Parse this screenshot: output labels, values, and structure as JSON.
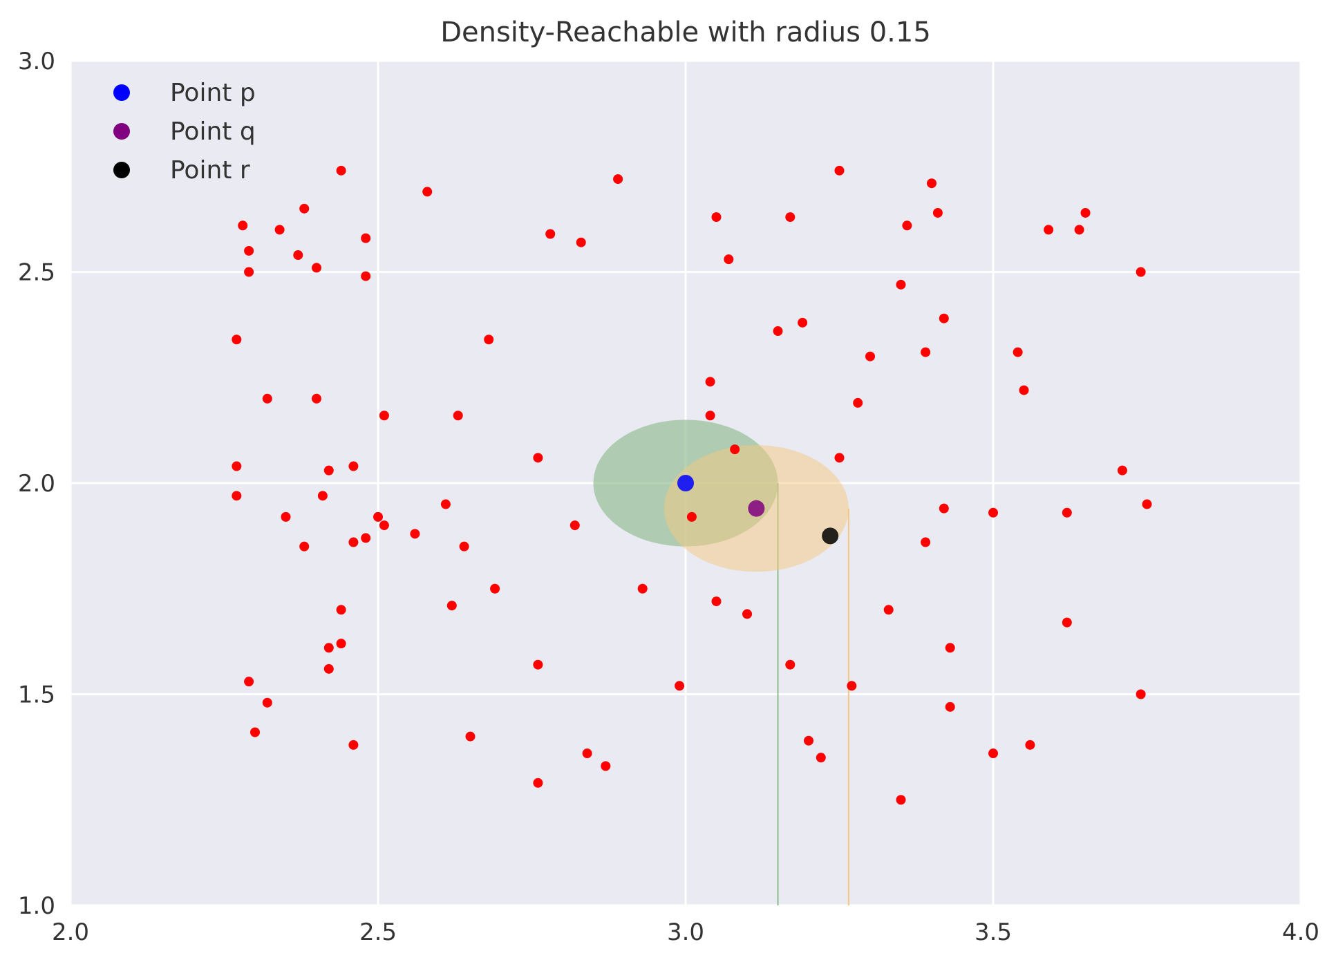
{
  "chart_data": {
    "type": "scatter",
    "title": "Density-Reachable with radius 0.15",
    "xlabel": "",
    "ylabel": "",
    "xlim": [
      2.0,
      4.0
    ],
    "ylim": [
      1.0,
      3.0
    ],
    "x_ticks": [
      2.0,
      2.5,
      3.0,
      3.5,
      4.0
    ],
    "y_ticks": [
      1.0,
      1.5,
      2.0,
      2.5,
      3.0
    ],
    "x_tick_labels": [
      "2.0",
      "2.5",
      "3.0",
      "3.5",
      "4.0"
    ],
    "y_tick_labels": [
      "1.0",
      "1.5",
      "2.0",
      "2.5",
      "3.0"
    ],
    "grid": true,
    "legend_position": "top-left",
    "radius": 0.15,
    "colors": {
      "background": "#eaeaf2",
      "grid": "#ffffff",
      "points": "#ff0000",
      "p": "#0000ff",
      "q": "#800080",
      "r": "#000000",
      "circle_p": "#8fbc8f",
      "circle_q": "#f5c77e"
    },
    "highlight_points": [
      {
        "name": "Point p",
        "x": 3.0,
        "y": 2.0,
        "color": "#0000ff"
      },
      {
        "name": "Point q",
        "x": 3.115,
        "y": 1.94,
        "color": "#800080"
      },
      {
        "name": "Point r",
        "x": 3.235,
        "y": 1.875,
        "color": "#000000"
      }
    ],
    "neighborhoods": [
      {
        "center_x": 3.0,
        "center_y": 2.0,
        "radius": 0.15,
        "color": "#8fbc8f",
        "opacity": 0.65
      },
      {
        "center_x": 3.115,
        "center_y": 1.94,
        "radius": 0.15,
        "color": "#f5c77e",
        "opacity": 0.5
      }
    ],
    "vertical_lines": [
      {
        "x": 3.15,
        "y_from": 1.0,
        "y_to": 2.0,
        "color": "#8fbc8f"
      },
      {
        "x": 3.265,
        "y_from": 1.0,
        "y_to": 1.94,
        "color": "#f5c77e"
      }
    ],
    "series": [
      {
        "name": "",
        "color": "#ff0000",
        "points": [
          [
            2.44,
            2.74
          ],
          [
            2.58,
            2.69
          ],
          [
            2.89,
            2.72
          ],
          [
            3.25,
            2.74
          ],
          [
            3.4,
            2.71
          ],
          [
            2.28,
            2.61
          ],
          [
            2.34,
            2.6
          ],
          [
            2.38,
            2.65
          ],
          [
            2.29,
            2.55
          ],
          [
            2.37,
            2.54
          ],
          [
            2.4,
            2.51
          ],
          [
            2.29,
            2.5
          ],
          [
            2.48,
            2.58
          ],
          [
            2.48,
            2.49
          ],
          [
            2.78,
            2.59
          ],
          [
            2.83,
            2.57
          ],
          [
            3.05,
            2.63
          ],
          [
            3.07,
            2.53
          ],
          [
            3.17,
            2.63
          ],
          [
            3.36,
            2.61
          ],
          [
            3.41,
            2.64
          ],
          [
            3.59,
            2.6
          ],
          [
            3.64,
            2.6
          ],
          [
            3.65,
            2.64
          ],
          [
            3.74,
            2.5
          ],
          [
            3.35,
            2.47
          ],
          [
            3.42,
            2.39
          ],
          [
            3.15,
            2.36
          ],
          [
            3.19,
            2.38
          ],
          [
            3.3,
            2.3
          ],
          [
            3.39,
            2.31
          ],
          [
            3.54,
            2.31
          ],
          [
            3.55,
            2.22
          ],
          [
            2.27,
            2.34
          ],
          [
            2.68,
            2.34
          ],
          [
            3.04,
            2.24
          ],
          [
            3.28,
            2.19
          ],
          [
            2.32,
            2.2
          ],
          [
            2.4,
            2.2
          ],
          [
            2.51,
            2.16
          ],
          [
            2.63,
            2.16
          ],
          [
            3.04,
            2.16
          ],
          [
            3.08,
            2.08
          ],
          [
            3.25,
            2.06
          ],
          [
            2.76,
            2.06
          ],
          [
            2.27,
            2.04
          ],
          [
            2.42,
            2.03
          ],
          [
            2.46,
            2.04
          ],
          [
            3.71,
            2.03
          ],
          [
            2.27,
            1.97
          ],
          [
            2.41,
            1.97
          ],
          [
            2.61,
            1.95
          ],
          [
            3.75,
            1.95
          ],
          [
            2.35,
            1.92
          ],
          [
            2.5,
            1.92
          ],
          [
            2.51,
            1.9
          ],
          [
            2.82,
            1.9
          ],
          [
            3.01,
            1.92
          ],
          [
            3.42,
            1.94
          ],
          [
            3.5,
            1.93
          ],
          [
            3.62,
            1.93
          ],
          [
            2.38,
            1.85
          ],
          [
            2.46,
            1.86
          ],
          [
            2.48,
            1.87
          ],
          [
            2.56,
            1.88
          ],
          [
            2.64,
            1.85
          ],
          [
            3.39,
            1.86
          ],
          [
            2.69,
            1.75
          ],
          [
            2.93,
            1.75
          ],
          [
            2.62,
            1.71
          ],
          [
            3.05,
            1.72
          ],
          [
            3.1,
            1.69
          ],
          [
            3.33,
            1.7
          ],
          [
            2.44,
            1.7
          ],
          [
            3.62,
            1.67
          ],
          [
            2.42,
            1.61
          ],
          [
            2.44,
            1.62
          ],
          [
            3.43,
            1.61
          ],
          [
            2.42,
            1.56
          ],
          [
            2.76,
            1.57
          ],
          [
            3.17,
            1.57
          ],
          [
            2.29,
            1.53
          ],
          [
            2.99,
            1.52
          ],
          [
            3.27,
            1.52
          ],
          [
            2.32,
            1.48
          ],
          [
            3.74,
            1.5
          ],
          [
            3.43,
            1.47
          ],
          [
            2.3,
            1.41
          ],
          [
            2.46,
            1.38
          ],
          [
            2.65,
            1.4
          ],
          [
            3.2,
            1.39
          ],
          [
            3.56,
            1.38
          ],
          [
            3.5,
            1.36
          ],
          [
            2.84,
            1.36
          ],
          [
            3.22,
            1.35
          ],
          [
            2.87,
            1.33
          ],
          [
            2.76,
            1.29
          ],
          [
            3.35,
            1.25
          ]
        ]
      }
    ]
  }
}
